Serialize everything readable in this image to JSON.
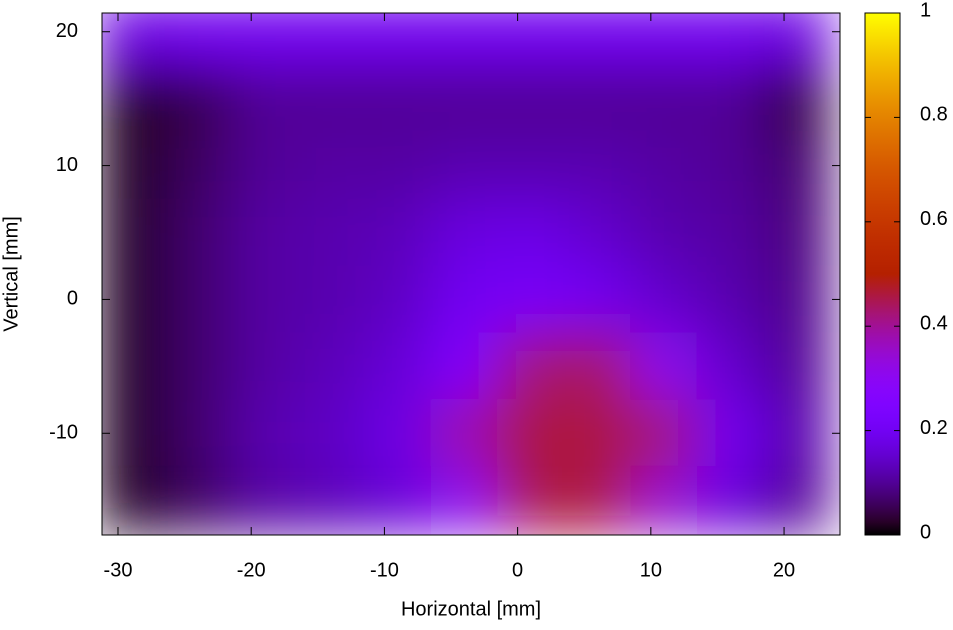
{
  "chart_data": {
    "type": "heatmap",
    "x_label": "Horizontal [mm]",
    "y_label": "Vertical [mm]",
    "xlim": [
      -31.2,
      24.2
    ],
    "ylim": [
      -17.6,
      21.4
    ],
    "xticks": [
      -30,
      -20,
      -10,
      0,
      10,
      20
    ],
    "yticks": [
      -10,
      0,
      10,
      20
    ],
    "zlim": [
      0,
      1
    ],
    "zticks": [
      0,
      0.2,
      0.4,
      0.6,
      0.8,
      1
    ],
    "x": [
      -29,
      -24,
      -19,
      -14,
      -9,
      -4,
      1,
      6,
      11,
      16,
      21
    ],
    "y": [
      20,
      15,
      10,
      5,
      0,
      -5,
      -10,
      -15
    ],
    "z": [
      [
        0.18,
        0.2,
        0.2,
        0.2,
        0.2,
        0.2,
        0.2,
        0.2,
        0.2,
        0.2,
        0.18
      ],
      [
        0.02,
        0.05,
        0.1,
        0.1,
        0.1,
        0.1,
        0.1,
        0.1,
        0.1,
        0.1,
        0.04
      ],
      [
        0.02,
        0.06,
        0.1,
        0.11,
        0.11,
        0.12,
        0.12,
        0.12,
        0.11,
        0.1,
        0.07
      ],
      [
        0.02,
        0.07,
        0.11,
        0.12,
        0.13,
        0.17,
        0.18,
        0.15,
        0.12,
        0.11,
        0.08
      ],
      [
        0.02,
        0.07,
        0.11,
        0.12,
        0.14,
        0.2,
        0.22,
        0.2,
        0.15,
        0.12,
        0.09
      ],
      [
        0.02,
        0.07,
        0.11,
        0.13,
        0.16,
        0.25,
        0.42,
        0.44,
        0.3,
        0.15,
        0.1
      ],
      [
        0.02,
        0.07,
        0.12,
        0.14,
        0.18,
        0.38,
        0.46,
        0.46,
        0.42,
        0.2,
        0.12
      ],
      [
        0.02,
        0.06,
        0.11,
        0.13,
        0.16,
        0.3,
        0.45,
        0.46,
        0.35,
        0.17,
        0.1
      ]
    ]
  }
}
